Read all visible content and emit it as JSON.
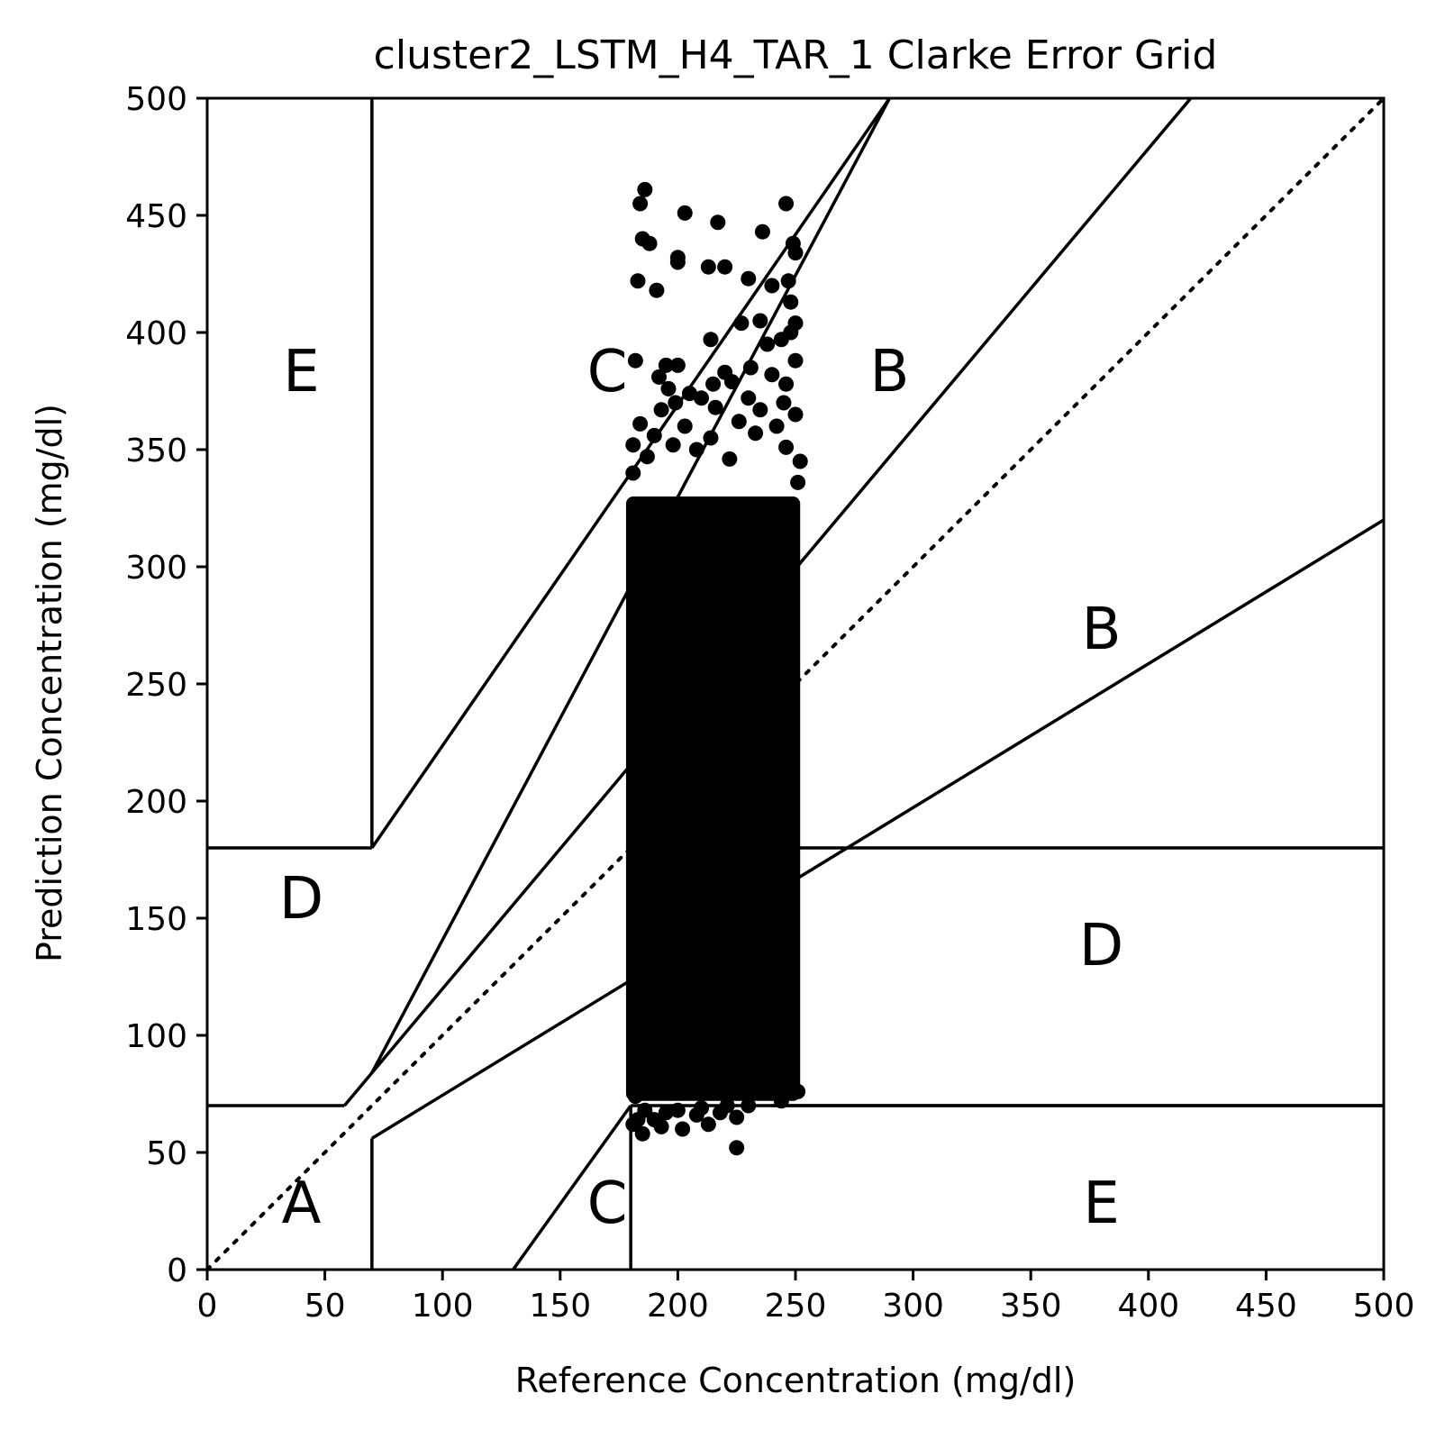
{
  "chart_data": {
    "type": "scatter",
    "title": "cluster2_LSTM_H4_TAR_1 Clarke Error Grid",
    "xlabel": "Reference Concentration (mg/dl)",
    "ylabel": "Prediction Concentration (mg/dl)",
    "xlim": [
      0,
      500
    ],
    "ylim": [
      0,
      500
    ],
    "xticks": [
      "0",
      "50",
      "100",
      "150",
      "200",
      "250",
      "300",
      "350",
      "400",
      "450",
      "500"
    ],
    "yticks": [
      "0",
      "50",
      "100",
      "150",
      "200",
      "250",
      "300",
      "350",
      "400",
      "450",
      "500"
    ],
    "grid": false,
    "legend": "none",
    "marker_color": "#000000",
    "reference_line": {
      "x": [
        0,
        500
      ],
      "y": [
        0,
        500
      ],
      "style": "dotted"
    },
    "zone_boundaries": [
      {
        "x": [
          0,
          58.33
        ],
        "y": [
          70,
          70
        ]
      },
      {
        "x": [
          58.33,
          70
        ],
        "y": [
          70,
          84
        ]
      },
      {
        "x": [
          70,
          290
        ],
        "y": [
          84,
          500
        ]
      },
      {
        "x": [
          70,
          70
        ],
        "y": [
          0,
          56
        ]
      },
      {
        "x": [
          70,
          500
        ],
        "y": [
          56,
          320
        ]
      },
      {
        "x": [
          130,
          180
        ],
        "y": [
          0,
          70
        ]
      },
      {
        "x": [
          180,
          180
        ],
        "y": [
          0,
          70
        ]
      },
      {
        "x": [
          180,
          500
        ],
        "y": [
          70,
          70
        ]
      },
      {
        "x": [
          240,
          500
        ],
        "y": [
          70,
          70
        ]
      },
      {
        "x": [
          70,
          70
        ],
        "y": [
          180,
          500
        ]
      },
      {
        "x": [
          70,
          290
        ],
        "y": [
          180,
          500
        ]
      },
      {
        "x": [
          0,
          70
        ],
        "y": [
          180,
          180
        ]
      },
      {
        "x": [
          240,
          500
        ],
        "y": [
          180,
          180
        ]
      },
      {
        "x": [
          70,
          418
        ],
        "y": [
          84,
          500
        ]
      }
    ],
    "zone_labels": [
      {
        "text": "A",
        "x": 40,
        "y": 20
      },
      {
        "text": "B",
        "x": 290,
        "y": 375
      },
      {
        "text": "B",
        "x": 380,
        "y": 265
      },
      {
        "text": "C",
        "x": 170,
        "y": 375
      },
      {
        "text": "C",
        "x": 170,
        "y": 20
      },
      {
        "text": "D",
        "x": 40,
        "y": 150
      },
      {
        "text": "D",
        "x": 380,
        "y": 130
      },
      {
        "text": "E",
        "x": 40,
        "y": 375
      },
      {
        "text": "E",
        "x": 380,
        "y": 20
      }
    ],
    "dense_region": {
      "x_range": [
        178,
        252
      ],
      "y_range": [
        72,
        330
      ]
    },
    "points": [
      [
        186,
        461
      ],
      [
        184,
        455
      ],
      [
        246,
        455
      ],
      [
        203,
        451
      ],
      [
        217,
        447
      ],
      [
        236,
        443
      ],
      [
        185,
        440
      ],
      [
        188,
        438
      ],
      [
        249,
        438
      ],
      [
        250,
        434
      ],
      [
        200,
        432
      ],
      [
        200,
        430
      ],
      [
        213,
        428
      ],
      [
        220,
        428
      ],
      [
        183,
        422
      ],
      [
        230,
        423
      ],
      [
        247,
        422
      ],
      [
        191,
        418
      ],
      [
        240,
        420
      ],
      [
        248,
        413
      ],
      [
        235,
        405
      ],
      [
        227,
        404
      ],
      [
        250,
        404
      ],
      [
        214,
        397
      ],
      [
        248,
        400
      ],
      [
        244,
        397
      ],
      [
        238,
        395
      ],
      [
        182,
        388
      ],
      [
        195,
        386
      ],
      [
        200,
        386
      ],
      [
        250,
        388
      ],
      [
        192,
        381
      ],
      [
        220,
        383
      ],
      [
        231,
        385
      ],
      [
        240,
        382
      ],
      [
        215,
        378
      ],
      [
        196,
        376
      ],
      [
        205,
        374
      ],
      [
        223,
        379
      ],
      [
        246,
        378
      ],
      [
        199,
        370
      ],
      [
        210,
        372
      ],
      [
        230,
        372
      ],
      [
        245,
        370
      ],
      [
        193,
        367
      ],
      [
        216,
        368
      ],
      [
        235,
        367
      ],
      [
        250,
        365
      ],
      [
        184,
        361
      ],
      [
        203,
        360
      ],
      [
        226,
        362
      ],
      [
        242,
        360
      ],
      [
        190,
        356
      ],
      [
        214,
        355
      ],
      [
        233,
        357
      ],
      [
        181,
        352
      ],
      [
        198,
        352
      ],
      [
        208,
        350
      ],
      [
        246,
        351
      ],
      [
        187,
        347
      ],
      [
        222,
        346
      ],
      [
        252,
        345
      ],
      [
        181,
        340
      ],
      [
        251,
        336
      ],
      [
        182,
        74
      ],
      [
        244,
        72
      ],
      [
        251,
        76
      ],
      [
        186,
        68
      ],
      [
        195,
        67
      ],
      [
        200,
        68
      ],
      [
        210,
        69
      ],
      [
        221,
        70
      ],
      [
        230,
        70
      ],
      [
        183,
        64
      ],
      [
        190,
        64
      ],
      [
        208,
        66
      ],
      [
        218,
        67
      ],
      [
        225,
        65
      ],
      [
        181,
        62
      ],
      [
        193,
        61
      ],
      [
        202,
        60
      ],
      [
        213,
        62
      ],
      [
        185,
        58
      ],
      [
        225,
        52
      ]
    ]
  }
}
